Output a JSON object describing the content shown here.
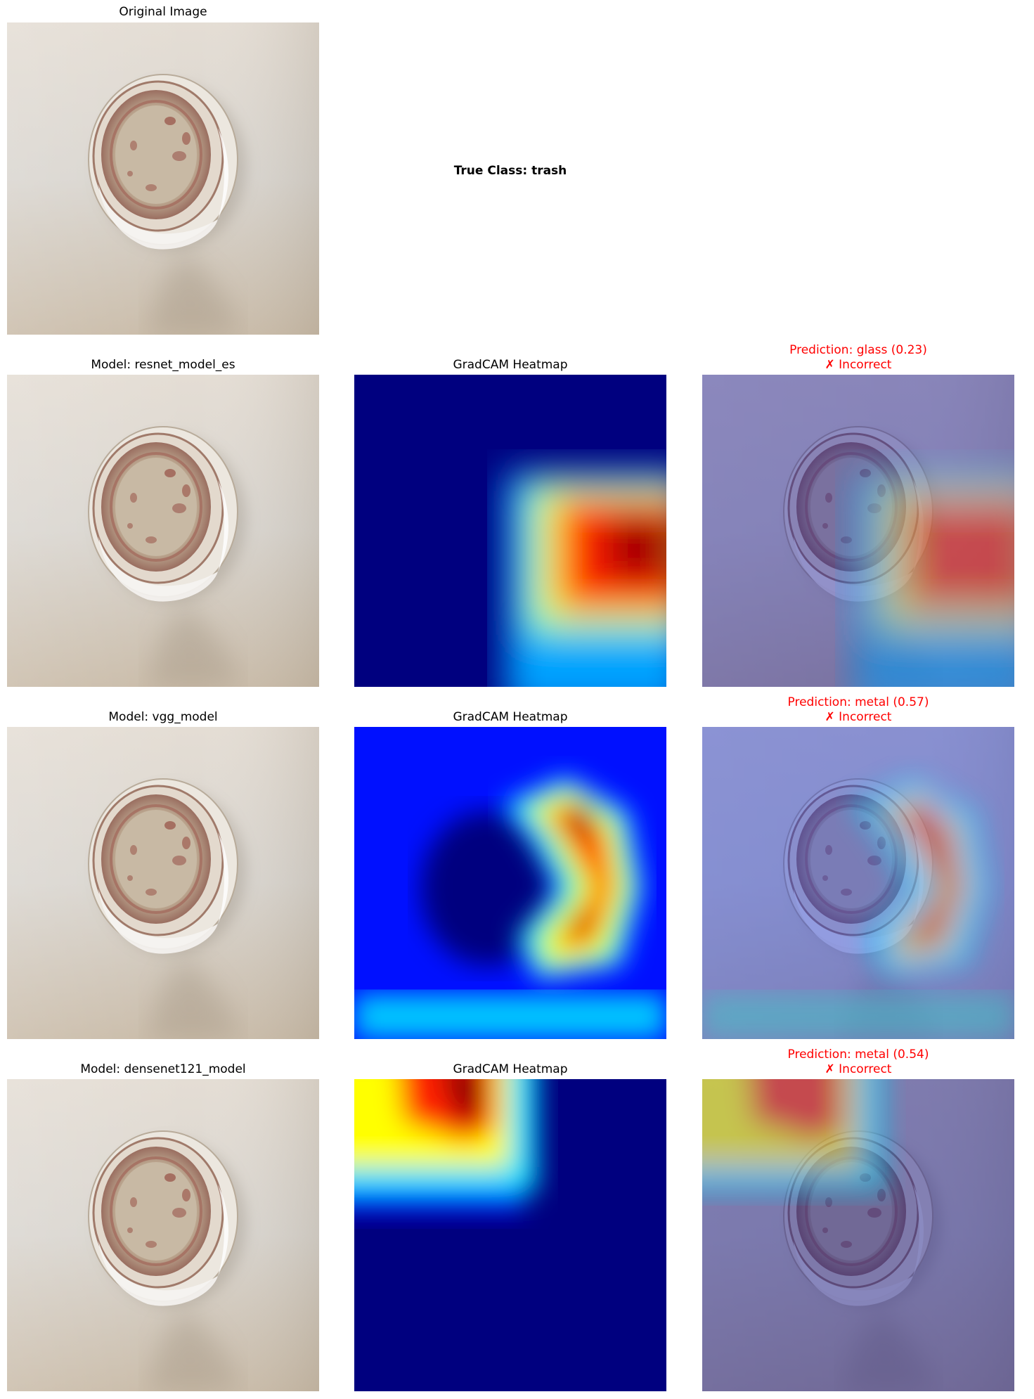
{
  "figure": {
    "original_title": "Original Image",
    "true_class": "True Class: trash"
  },
  "rows": [
    {
      "model_title": "Model: resnet_model_es",
      "heatmap_title": "GradCAM Heatmap",
      "prediction": "Prediction: glass (0.23)",
      "verdict": "✗ Incorrect"
    },
    {
      "model_title": "Model: vgg_model",
      "heatmap_title": "GradCAM Heatmap",
      "prediction": "Prediction: metal (0.57)",
      "verdict": "✗ Incorrect"
    },
    {
      "model_title": "Model: densenet121_model",
      "heatmap_title": "GradCAM Heatmap",
      "prediction": "Prediction: metal (0.54)",
      "verdict": "✗ Incorrect"
    }
  ],
  "colors": {
    "incorrect": "#ff0000",
    "jet_low": "#00007f",
    "jet_high": "#800000"
  }
}
